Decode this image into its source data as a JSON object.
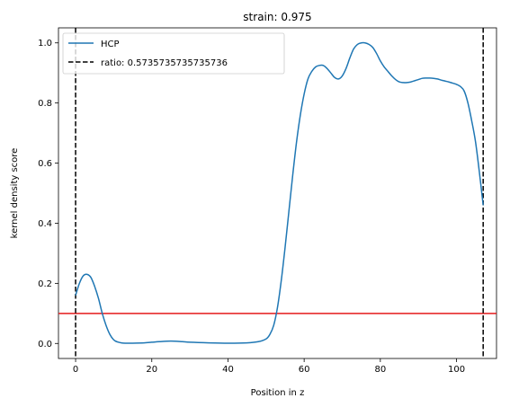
{
  "chart_data": {
    "type": "line",
    "title": "strain: 0.975",
    "xlabel": "Position in z",
    "ylabel": "kernel density score",
    "xlim": [
      -4.5,
      110.5
    ],
    "ylim": [
      -0.05,
      1.05
    ],
    "xticks": [
      0,
      20,
      40,
      60,
      80,
      100
    ],
    "yticks": [
      0.0,
      0.2,
      0.4,
      0.6,
      0.8,
      1.0
    ],
    "xtick_labels": [
      "0",
      "20",
      "40",
      "60",
      "80",
      "100"
    ],
    "ytick_labels": [
      "0.0",
      "0.2",
      "0.4",
      "0.6",
      "0.8",
      "1.0"
    ],
    "grid": false,
    "legend_position": "upper-left",
    "series": [
      {
        "name": "HCP",
        "color": "#1f77b4",
        "style": "solid",
        "x": [
          0,
          1,
          2,
          3,
          4,
          5,
          6,
          7,
          8,
          9,
          10,
          11,
          12,
          13,
          15,
          18,
          20,
          22,
          25,
          28,
          30,
          35,
          40,
          45,
          48,
          50,
          51,
          52,
          53,
          54,
          55,
          56,
          57,
          58,
          59,
          60,
          61,
          62,
          63,
          64,
          65,
          66,
          67,
          68,
          69,
          70,
          71,
          72,
          73,
          74,
          75,
          76,
          77,
          78,
          79,
          80,
          81,
          82,
          83,
          84,
          85,
          86,
          87,
          88,
          89,
          90,
          91,
          92,
          93,
          94,
          95,
          96,
          97,
          98,
          99,
          100,
          101,
          102,
          103,
          104,
          105,
          106,
          107
        ],
        "y": [
          0.16,
          0.2,
          0.225,
          0.23,
          0.22,
          0.19,
          0.15,
          0.1,
          0.06,
          0.03,
          0.012,
          0.005,
          0.002,
          0.001,
          0.001,
          0.002,
          0.004,
          0.006,
          0.008,
          0.006,
          0.004,
          0.002,
          0.001,
          0.002,
          0.006,
          0.015,
          0.03,
          0.06,
          0.12,
          0.21,
          0.32,
          0.44,
          0.56,
          0.67,
          0.76,
          0.83,
          0.88,
          0.905,
          0.92,
          0.925,
          0.925,
          0.915,
          0.9,
          0.885,
          0.88,
          0.89,
          0.915,
          0.95,
          0.98,
          0.995,
          1.0,
          1.0,
          0.995,
          0.985,
          0.965,
          0.94,
          0.92,
          0.905,
          0.89,
          0.878,
          0.87,
          0.868,
          0.868,
          0.87,
          0.874,
          0.878,
          0.882,
          0.883,
          0.883,
          0.882,
          0.88,
          0.876,
          0.873,
          0.87,
          0.866,
          0.862,
          0.855,
          0.84,
          0.8,
          0.74,
          0.67,
          0.57,
          0.46
        ]
      }
    ],
    "vlines": [
      {
        "name": "ratio: 0.5735735735735736",
        "x": [
          0,
          107
        ],
        "color": "#000000",
        "style": "dashed"
      }
    ],
    "hlines": [
      {
        "y": 0.1,
        "color": "#e41a1c",
        "style": "solid"
      }
    ]
  }
}
